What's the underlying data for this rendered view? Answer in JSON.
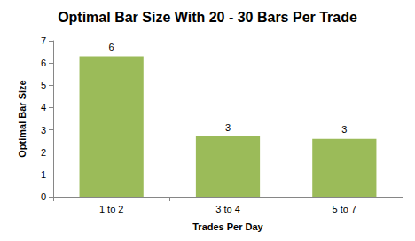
{
  "chart_data": {
    "type": "bar",
    "title": "Optimal Bar Size With 20 - 30 Bars Per Trade",
    "x_label": "Trades Per Day",
    "y_label": "Optimal Bar Size",
    "categories": [
      "1 to 2",
      "3 to 4",
      "5 to 7"
    ],
    "values": [
      6.3,
      2.7,
      2.6
    ],
    "value_labels": [
      "6",
      "3",
      "3"
    ],
    "color": "#9bbb59",
    "ylim": [
      0,
      7
    ],
    "yticks": [
      0,
      1,
      2,
      3,
      4,
      5,
      6,
      7
    ],
    "grid": false,
    "data_labels": true
  }
}
